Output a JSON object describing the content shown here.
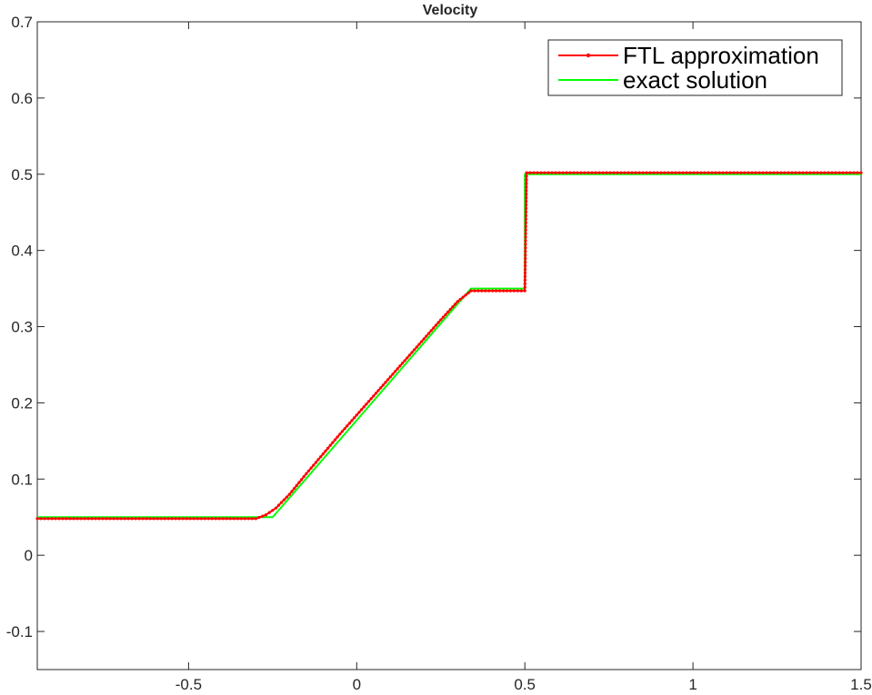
{
  "chart_data": {
    "type": "line",
    "title": "Velocity",
    "xlabel": "",
    "ylabel": "",
    "xlim": [
      -0.95,
      1.5
    ],
    "ylim": [
      -0.15,
      0.7
    ],
    "xticks": [
      -0.5,
      0,
      0.5,
      1,
      1.5
    ],
    "xtick_labels": [
      "-0.5",
      "0",
      "0.5",
      "1",
      "1.5"
    ],
    "yticks": [
      -0.1,
      0,
      0.1,
      0.2,
      0.3,
      0.4,
      0.5,
      0.6,
      0.7
    ],
    "ytick_labels": [
      "-0.1",
      "0",
      "0.1",
      "0.2",
      "0.3",
      "0.4",
      "0.5",
      "0.6",
      "0.7"
    ],
    "grid": false,
    "legend_position": "top-right",
    "series": [
      {
        "name": "FTL approximation",
        "color": "#ff0000",
        "marker": "dot",
        "x": [
          -0.95,
          -0.3,
          -0.27,
          -0.24,
          -0.2,
          -0.15,
          -0.1,
          -0.05,
          0,
          0.05,
          0.1,
          0.15,
          0.2,
          0.25,
          0.3,
          0.34,
          0.5,
          0.505,
          1.5
        ],
        "y": [
          0.048,
          0.048,
          0.053,
          0.062,
          0.08,
          0.107,
          0.133,
          0.159,
          0.184,
          0.209,
          0.234,
          0.259,
          0.284,
          0.309,
          0.333,
          0.347,
          0.347,
          0.502,
          0.502
        ]
      },
      {
        "name": "exact solution",
        "color": "#00ff00",
        "marker": "none",
        "x": [
          -0.95,
          -0.25,
          0.34,
          0.5,
          0.5,
          1.5
        ],
        "y": [
          0.05,
          0.05,
          0.35,
          0.35,
          0.5,
          0.5
        ]
      }
    ]
  }
}
